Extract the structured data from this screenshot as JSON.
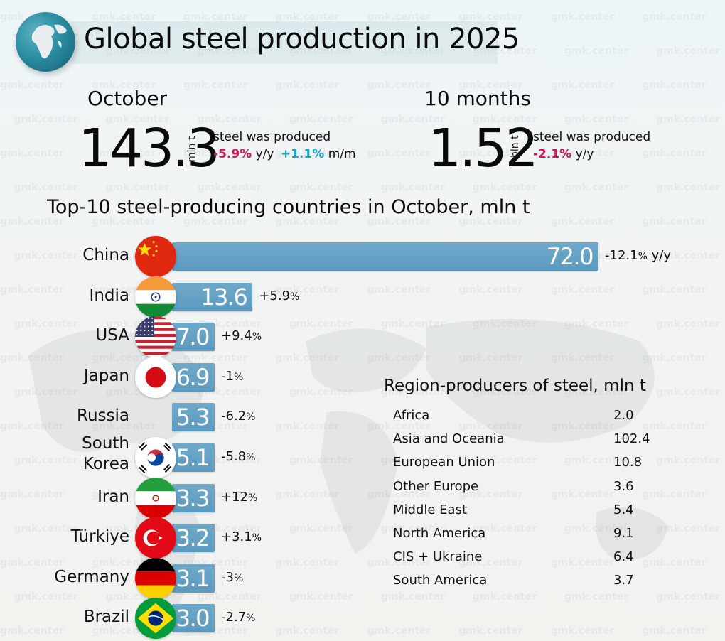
{
  "header": {
    "title": "Global steel production in 2025",
    "watermark": "gmk.center"
  },
  "kpis": {
    "october": {
      "label": "October",
      "value": "143.3",
      "unit": "mln t",
      "caption": "steel was produced",
      "yoy_value": "-5.9%",
      "yoy_label": "y/y",
      "mom_value": "+1.1%",
      "mom_label": "m/m"
    },
    "ten_months": {
      "label": "10 months",
      "value": "1.52",
      "unit": "bln t",
      "caption": "steel was produced",
      "yoy_value": "-2.1%",
      "yoy_label": "y/y"
    }
  },
  "colors": {
    "negative": "#d1175a",
    "positive": "#1aa5c8",
    "bar": "#5f9fc3"
  },
  "chart_data": [
    {
      "type": "bar",
      "orientation": "horizontal",
      "title": "Top-10 steel-producing countries in October, mln t",
      "categories": [
        "China",
        "India",
        "USA",
        "Japan",
        "Russia",
        "South Korea",
        "Iran",
        "Türkiye",
        "Germany",
        "Brazil"
      ],
      "category_lines": [
        [
          "China"
        ],
        [
          "India"
        ],
        [
          "USA"
        ],
        [
          "Japan"
        ],
        [
          "Russia"
        ],
        [
          "South",
          "Korea"
        ],
        [
          "Iran"
        ],
        [
          "Türkiye"
        ],
        [
          "Germany"
        ],
        [
          "Brazil"
        ]
      ],
      "values": [
        72.0,
        13.6,
        7.0,
        6.9,
        5.3,
        5.1,
        3.3,
        3.2,
        3.1,
        3.0
      ],
      "value_labels": [
        "72.0",
        "13.6",
        "7.0",
        "6.9",
        "5.3",
        "5.1",
        "3.3",
        "3.2",
        "3.1",
        "3.0"
      ],
      "changes": [
        "-12.1",
        "+5.9",
        "+9.4",
        "-1",
        "-6.2",
        "-5.8",
        "+12",
        "+3.1",
        "-3",
        "-2.7"
      ],
      "change_suffix": "%",
      "first_change_extra": "y/y",
      "flags": [
        "china",
        "india",
        "usa",
        "japan",
        "",
        "south-korea",
        "iran",
        "turkiye",
        "germany",
        "brazil"
      ],
      "xlim": [
        0,
        72
      ]
    },
    {
      "type": "table",
      "title": "Region-producers of steel, mln t",
      "rows": [
        {
          "region": "Africa",
          "value": "2.0"
        },
        {
          "region": "Asia and Oceania",
          "value": "102.4"
        },
        {
          "region": "European Union",
          "value": "10.8"
        },
        {
          "region": "Other Europe",
          "value": "3.6"
        },
        {
          "region": "Middle East",
          "value": "5.4"
        },
        {
          "region": "North America",
          "value": "9.1"
        },
        {
          "region": "CIS + Ukraine",
          "value": "6.4"
        },
        {
          "region": "South America",
          "value": "3.7"
        }
      ]
    }
  ]
}
